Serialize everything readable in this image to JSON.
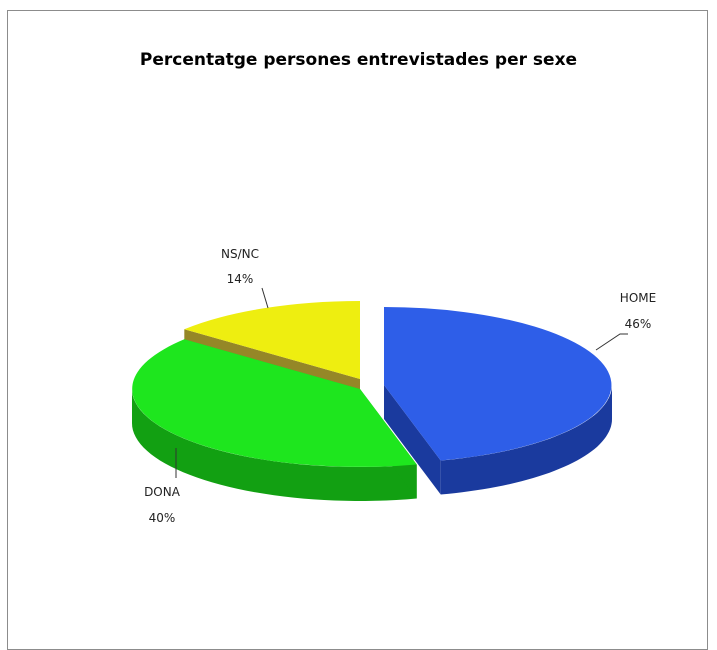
{
  "chart_data": {
    "type": "pie",
    "title": "Percentatge persones entrevistades per sexe",
    "slices": [
      {
        "label": "HOME",
        "value": 46,
        "display": "46%",
        "color": "#2e5ee8",
        "side": "#1a3a9e"
      },
      {
        "label": "DONA",
        "value": 40,
        "display": "40%",
        "color": "#1ee61e",
        "side": "#12a012"
      },
      {
        "label": "NS/NC",
        "value": 14,
        "display": "14%",
        "color": "#eeee10",
        "side": "#8a7a10"
      }
    ],
    "style": "3d-exploded",
    "legend": "none"
  }
}
